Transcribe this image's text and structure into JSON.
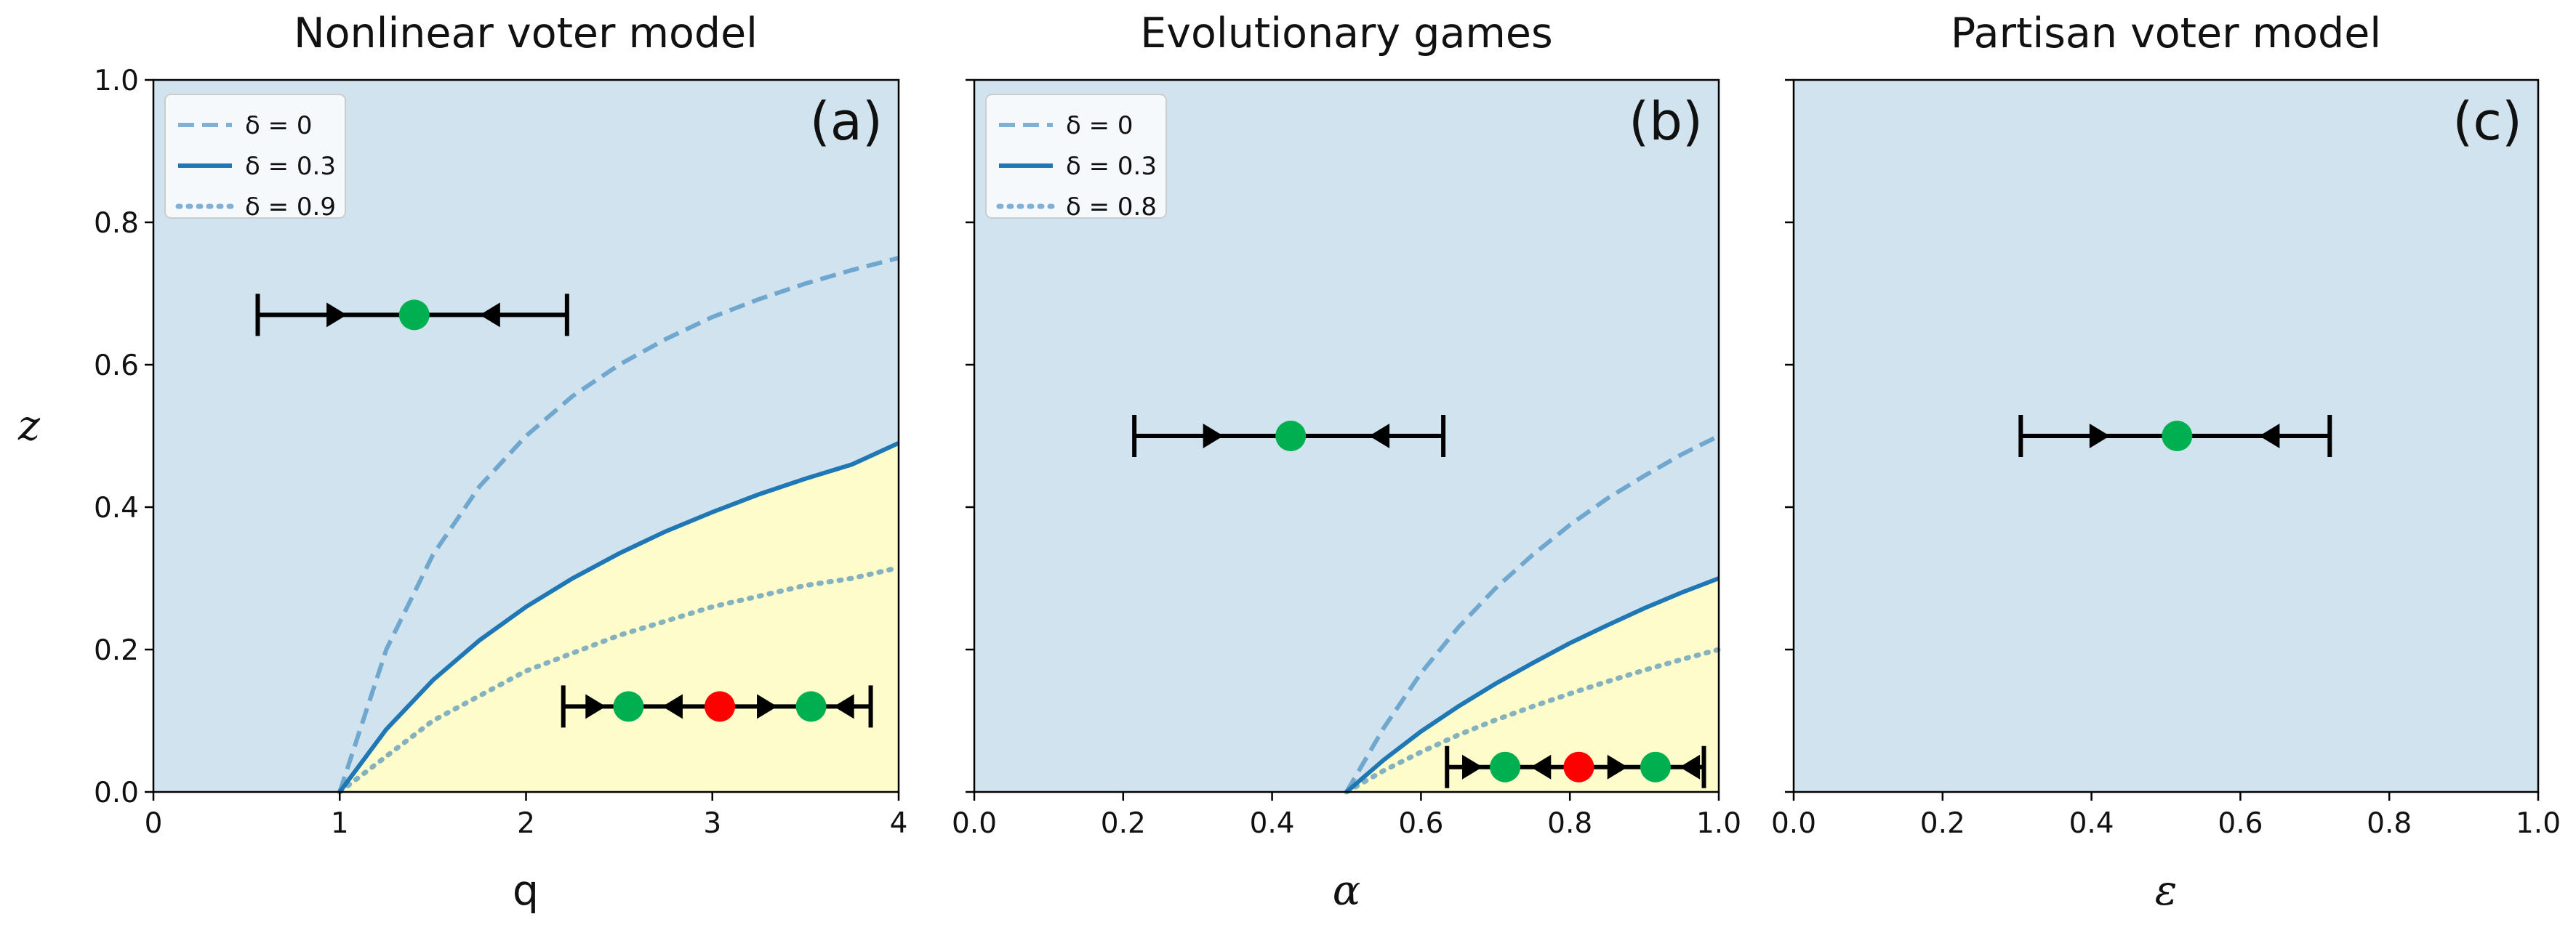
{
  "figure": {
    "colors": {
      "absorbing_region": "#d0e3ef",
      "stable_region": "#fffccc",
      "curve": "#1f77b4",
      "stable_point": "#00b050",
      "unstable_point": "#ff0000",
      "axis": "#000000"
    }
  },
  "chart_data": [
    {
      "panel": "a",
      "type": "line",
      "title": "Nonlinear voter model",
      "panel_label": "(a)",
      "xlabel": "q",
      "ylabel": "z",
      "xlim": [
        0,
        4
      ],
      "ylim": [
        0,
        1
      ],
      "xticks": [
        0,
        1,
        2,
        3,
        4
      ],
      "xtick_labels": [
        "0",
        "1",
        "2",
        "3",
        "4"
      ],
      "yticks": [
        0,
        0.2,
        0.4,
        0.6,
        0.8,
        1.0
      ],
      "ytick_labels": [
        "0.0",
        "0.2",
        "0.4",
        "0.6",
        "0.8",
        "1.0"
      ],
      "show_yticklabels": true,
      "legend_position": "top-left",
      "shaded_series": "δ = 0.3",
      "series": [
        {
          "name": "δ = 0",
          "style": "dashed",
          "opacity": 0.55,
          "x": [
            1.0,
            1.25,
            1.5,
            1.75,
            2.0,
            2.25,
            2.5,
            2.75,
            3.0,
            3.25,
            3.5,
            3.75,
            4.0
          ],
          "y": [
            0.0,
            0.2,
            0.333,
            0.429,
            0.5,
            0.556,
            0.6,
            0.636,
            0.667,
            0.692,
            0.714,
            0.733,
            0.75
          ]
        },
        {
          "name": "δ = 0.3",
          "style": "solid",
          "opacity": 1.0,
          "x": [
            1.0,
            1.25,
            1.5,
            1.75,
            2.0,
            2.25,
            2.5,
            2.75,
            3.0,
            3.25,
            3.5,
            3.75,
            4.0
          ],
          "y": [
            0.0,
            0.088,
            0.157,
            0.213,
            0.26,
            0.3,
            0.335,
            0.366,
            0.393,
            0.418,
            0.44,
            0.46,
            0.49
          ]
        },
        {
          "name": "δ = 0.9",
          "style": "dotted",
          "opacity": 0.55,
          "x": [
            1.0,
            1.25,
            1.5,
            1.75,
            2.0,
            2.25,
            2.5,
            2.75,
            3.0,
            3.25,
            3.5,
            3.75,
            4.0
          ],
          "y": [
            0.0,
            0.05,
            0.1,
            0.135,
            0.17,
            0.195,
            0.22,
            0.24,
            0.26,
            0.275,
            0.29,
            0.3,
            0.315
          ]
        }
      ],
      "flow_diagrams": [
        {
          "x_range": [
            0.56,
            2.22
          ],
          "y": 0.67,
          "arrows": [
            {
              "x": 0.98,
              "dir": "right"
            },
            {
              "x": 1.81,
              "dir": "left"
            }
          ],
          "points": [
            {
              "x": 1.4,
              "kind": "stable"
            }
          ]
        },
        {
          "x_range": [
            2.2,
            3.85
          ],
          "y": 0.12,
          "arrows": [
            {
              "x": 2.37,
              "dir": "right"
            },
            {
              "x": 2.79,
              "dir": "left"
            },
            {
              "x": 3.29,
              "dir": "right"
            },
            {
              "x": 3.71,
              "dir": "left"
            }
          ],
          "points": [
            {
              "x": 2.55,
              "kind": "stable"
            },
            {
              "x": 3.04,
              "kind": "unstable"
            },
            {
              "x": 3.53,
              "kind": "stable"
            }
          ]
        }
      ]
    },
    {
      "panel": "b",
      "type": "line",
      "title": "Evolutionary games",
      "panel_label": "(b)",
      "xlabel": "α",
      "ylabel": "",
      "xlim": [
        0,
        1
      ],
      "ylim": [
        0,
        1
      ],
      "xticks": [
        0,
        0.2,
        0.4,
        0.6,
        0.8,
        1.0
      ],
      "xtick_labels": [
        "0.0",
        "0.2",
        "0.4",
        "0.6",
        "0.8",
        "1.0"
      ],
      "yticks": [
        0,
        0.2,
        0.4,
        0.6,
        0.8,
        1.0
      ],
      "ytick_labels": [],
      "show_yticklabels": false,
      "legend_position": "top-left",
      "shaded_series": "δ = 0.3",
      "series": [
        {
          "name": "δ = 0",
          "style": "dashed",
          "opacity": 0.55,
          "x": [
            0.5,
            0.55,
            0.6,
            0.65,
            0.7,
            0.75,
            0.8,
            0.85,
            0.9,
            0.95,
            1.0
          ],
          "y": [
            0.0,
            0.09,
            0.167,
            0.231,
            0.286,
            0.333,
            0.375,
            0.412,
            0.444,
            0.474,
            0.5
          ]
        },
        {
          "name": "δ = 0.3",
          "style": "solid",
          "opacity": 1.0,
          "x": [
            0.5,
            0.55,
            0.6,
            0.65,
            0.7,
            0.75,
            0.8,
            0.85,
            0.9,
            0.95,
            1.0
          ],
          "y": [
            0.0,
            0.045,
            0.085,
            0.12,
            0.152,
            0.181,
            0.209,
            0.234,
            0.258,
            0.28,
            0.3
          ]
        },
        {
          "name": "δ = 0.8",
          "style": "dotted",
          "opacity": 0.55,
          "x": [
            0.5,
            0.55,
            0.6,
            0.65,
            0.7,
            0.75,
            0.8,
            0.85,
            0.9,
            0.95,
            1.0
          ],
          "y": [
            0.0,
            0.03,
            0.056,
            0.08,
            0.101,
            0.12,
            0.138,
            0.155,
            0.171,
            0.186,
            0.2
          ]
        }
      ],
      "flow_diagrams": [
        {
          "x_range": [
            0.215,
            0.63
          ],
          "y": 0.5,
          "arrows": [
            {
              "x": 0.32,
              "dir": "right"
            },
            {
              "x": 0.545,
              "dir": "left"
            }
          ],
          "points": [
            {
              "x": 0.425,
              "kind": "stable"
            }
          ]
        },
        {
          "x_range": [
            0.635,
            0.98
          ],
          "y": 0.035,
          "arrows": [
            {
              "x": 0.668,
              "dir": "right"
            },
            {
              "x": 0.762,
              "dir": "left"
            },
            {
              "x": 0.863,
              "dir": "right"
            },
            {
              "x": 0.962,
              "dir": "left"
            }
          ],
          "points": [
            {
              "x": 0.713,
              "kind": "stable"
            },
            {
              "x": 0.812,
              "kind": "unstable"
            },
            {
              "x": 0.915,
              "kind": "stable"
            }
          ]
        }
      ]
    },
    {
      "panel": "c",
      "type": "line",
      "title": "Partisan voter model",
      "panel_label": "(c)",
      "xlabel": "ε",
      "ylabel": "",
      "xlim": [
        0,
        1
      ],
      "ylim": [
        0,
        1
      ],
      "xticks": [
        0,
        0.2,
        0.4,
        0.6,
        0.8,
        1.0
      ],
      "xtick_labels": [
        "0.0",
        "0.2",
        "0.4",
        "0.6",
        "0.8",
        "1.0"
      ],
      "yticks": [
        0,
        0.2,
        0.4,
        0.6,
        0.8,
        1.0
      ],
      "ytick_labels": [],
      "show_yticklabels": false,
      "legend_position": "none",
      "shaded_series": null,
      "series": [],
      "flow_diagrams": [
        {
          "x_range": [
            0.305,
            0.72
          ],
          "y": 0.5,
          "arrows": [
            {
              "x": 0.41,
              "dir": "right"
            },
            {
              "x": 0.64,
              "dir": "left"
            }
          ],
          "points": [
            {
              "x": 0.515,
              "kind": "stable"
            }
          ]
        }
      ]
    }
  ]
}
